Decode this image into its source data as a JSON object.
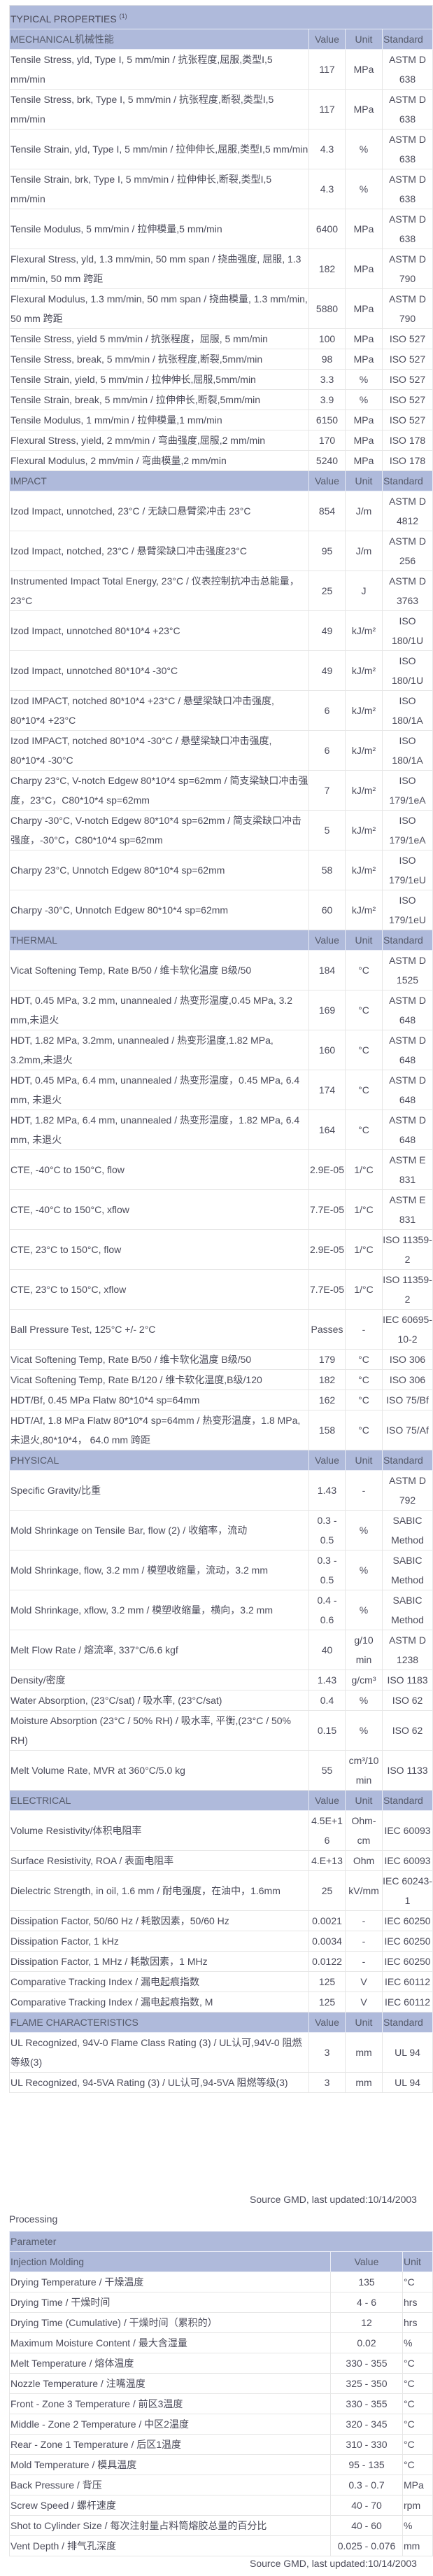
{
  "properties": {
    "title": "TYPICAL PROPERTIES",
    "title_note": "(1)",
    "sections": [
      {
        "name": "MECHANICAL机械性能",
        "value_label": "Value",
        "unit_label": "Unit",
        "standard_label": "Standard",
        "rows": [
          [
            "Tensile Stress, yld, Type I, 5 mm/min / 抗张程度,屈服,类型I,5 mm/min",
            "117",
            "MPa",
            "ASTM D 638"
          ],
          [
            "Tensile Stress, brk, Type I, 5 mm/min / 抗张程度,断裂,类型I,5 mm/min",
            "117",
            "MPa",
            "ASTM D 638"
          ],
          [
            "Tensile Strain, yld, Type I, 5 mm/min / 拉伸伸长,屈服,类型I,5 mm/min",
            "4.3",
            "%",
            "ASTM D 638"
          ],
          [
            "Tensile Strain, brk, Type I, 5 mm/min / 拉伸伸长,断裂,类型I,5 mm/min",
            "4.3",
            "%",
            "ASTM D 638"
          ],
          [
            "Tensile Modulus, 5 mm/min / 拉伸模量,5 mm/min",
            "6400",
            "MPa",
            "ASTM D 638"
          ],
          [
            "Flexural Stress, yld, 1.3 mm/min, 50 mm span / 挠曲强度, 屈服, 1.3 mm/min, 50 mm 跨距",
            "182",
            "MPa",
            "ASTM D 790"
          ],
          [
            "Flexural Modulus, 1.3 mm/min, 50 mm span / 挠曲模量, 1.3 mm/min, 50 mm 跨距",
            "5880",
            "MPa",
            "ASTM D 790"
          ],
          [
            "Tensile Stress, yield 5 mm/min / 抗张程度，屈服, 5 mm/min",
            "100",
            "MPa",
            "ISO 527"
          ],
          [
            "Tensile Stress, break, 5 mm/min / 抗张程度,断裂,5mm/min",
            "98",
            "MPa",
            "ISO 527"
          ],
          [
            "Tensile Strain, yield, 5 mm/min / 拉伸伸长,屈服,5mm/min",
            "3.3",
            "%",
            "ISO 527"
          ],
          [
            "Tensile Strain, break, 5 mm/min / 拉伸伸长,断裂,5mm/min",
            "3.9",
            "%",
            "ISO 527"
          ],
          [
            "Tensile Modulus, 1 mm/min / 拉伸模量,1 mm/min",
            "6150",
            "MPa",
            "ISO 527"
          ],
          [
            "Flexural Stress, yield, 2 mm/min / 弯曲强度,屈服,2 mm/min",
            "170",
            "MPa",
            "ISO 178"
          ],
          [
            "Flexural Modulus, 2 mm/min / 弯曲模量,2 mm/min",
            "5240",
            "MPa",
            "ISO 178"
          ]
        ]
      },
      {
        "name": "IMPACT",
        "value_label": "Value",
        "unit_label": "Unit",
        "standard_label": "Standard",
        "rows": [
          [
            "Izod Impact, unnotched, 23°C / 无缺口悬臂梁冲击 23°C",
            "854",
            "J/m",
            "ASTM D 4812"
          ],
          [
            "Izod Impact, notched, 23°C / 悬臂梁缺口冲击强度23°C",
            "95",
            "J/m",
            "ASTM D 256"
          ],
          [
            "Instrumented Impact Total Energy, 23°C / 仪表控制抗冲击总能量，23°C",
            "25",
            "J",
            "ASTM D 3763"
          ],
          [
            "Izod Impact, unnotched 80*10*4 +23°C",
            "49",
            "kJ/m²",
            "ISO 180/1U"
          ],
          [
            "Izod Impact, unnotched 80*10*4 -30°C",
            "49",
            "kJ/m²",
            "ISO 180/1U"
          ],
          [
            "Izod IMPACT, notched 80*10*4 +23°C / 悬壁梁缺口冲击强度, 80*10*4 +23°C",
            "6",
            "kJ/m²",
            "ISO 180/1A"
          ],
          [
            "Izod IMPACT, notched 80*10*4 -30°C / 悬壁梁缺口冲击强度, 80*10*4 -30°C",
            "6",
            "kJ/m²",
            "ISO 180/1A"
          ],
          [
            "Charpy 23°C, V-notch Edgew 80*10*4 sp=62mm / 简支梁缺口冲击强度，23°C，C80*10*4 sp=62mm",
            "7",
            "kJ/m²",
            "ISO 179/1eA"
          ],
          [
            "Charpy -30°C, V-notch Edgew 80*10*4 sp=62mm / 简支梁缺口冲击强度，-30°C，C80*10*4 sp=62mm",
            "5",
            "kJ/m²",
            "ISO 179/1eA"
          ],
          [
            "Charpy 23°C, Unnotch Edgew 80*10*4 sp=62mm",
            "58",
            "kJ/m²",
            "ISO 179/1eU"
          ],
          [
            "Charpy -30°C, Unnotch Edgew 80*10*4 sp=62mm",
            "60",
            "kJ/m²",
            "ISO 179/1eU"
          ]
        ]
      },
      {
        "name": "THERMAL",
        "value_label": "Value",
        "unit_label": "Unit",
        "standard_label": "Standard",
        "rows": [
          [
            "Vicat Softening Temp, Rate B/50 / 维卡软化温度 B级/50",
            "184",
            "°C",
            "ASTM D 1525"
          ],
          [
            "HDT, 0.45 MPa, 3.2 mm, unannealed / 热变形温度,0.45 MPa, 3.2 mm,未退火",
            "169",
            "°C",
            "ASTM D 648"
          ],
          [
            "HDT, 1.82 MPa, 3.2mm, unannealed / 热变形温度,1.82 MPa, 3.2mm,未退火",
            "160",
            "°C",
            "ASTM D 648"
          ],
          [
            "HDT, 0.45 MPa, 6.4 mm, unannealed / 热变形温度，0.45 MPa, 6.4 mm, 未退火",
            "174",
            "°C",
            "ASTM D 648"
          ],
          [
            "HDT, 1.82 MPa, 6.4 mm, unannealed / 热变形温度，1.82 MPa, 6.4 mm, 未退火",
            "164",
            "°C",
            "ASTM D 648"
          ],
          [
            "CTE, -40°C to 150°C, flow",
            "2.9E-05",
            "1/°C",
            "ASTM E 831"
          ],
          [
            "CTE, -40°C to 150°C, xflow",
            "7.7E-05",
            "1/°C",
            "ASTM E 831"
          ],
          [
            "CTE, 23°C to 150°C, flow",
            "2.9E-05",
            "1/°C",
            "ISO 11359-2"
          ],
          [
            "CTE, 23°C to 150°C, xflow",
            "7.7E-05",
            "1/°C",
            "ISO 11359-2"
          ],
          [
            "Ball Pressure Test, 125°C +/- 2°C",
            "Passes",
            "-",
            "IEC 60695-10-2"
          ],
          [
            "Vicat Softening Temp, Rate B/50 / 维卡软化温度 B级/50",
            "179",
            "°C",
            "ISO 306"
          ],
          [
            "Vicat Softening Temp, Rate B/120 / 维卡软化温度,B级/120",
            "182",
            "°C",
            "ISO 306"
          ],
          [
            "HDT/Bf, 0.45 MPa Flatw 80*10*4 sp=64mm",
            "162",
            "°C",
            "ISO 75/Bf"
          ],
          [
            "HDT/Af, 1.8 MPa Flatw 80*10*4 sp=64mm / 热变形温度，1.8 MPa, 未退火,80*10*4， 64.0 mm 跨距",
            "158",
            "°C",
            "ISO 75/Af"
          ]
        ]
      },
      {
        "name": "PHYSICAL",
        "value_label": "Value",
        "unit_label": "Unit",
        "standard_label": "Standard",
        "rows": [
          [
            "Specific Gravity/比重",
            "1.43",
            "-",
            "ASTM D 792"
          ],
          [
            "Mold Shrinkage on Tensile Bar, flow (2) / 收缩率，流动",
            "0.3 - 0.5",
            "%",
            "SABIC Method"
          ],
          [
            "Mold Shrinkage, flow, 3.2 mm / 模塑收缩量，流动，3.2 mm",
            "0.3 - 0.5",
            "%",
            "SABIC Method"
          ],
          [
            "Mold Shrinkage, xflow, 3.2 mm / 模塑收缩量，横向，3.2 mm",
            "0.4 - 0.6",
            "%",
            "SABIC Method"
          ],
          [
            "Melt Flow Rate / 熔流率, 337°C/6.6 kgf",
            "40",
            "g/10 min",
            "ASTM D 1238"
          ],
          [
            "Density/密度",
            "1.43",
            "g/cm³",
            "ISO 1183"
          ],
          [
            "Water Absorption, (23°C/sat) / 吸水率, (23°C/sat)",
            "0.4",
            "%",
            "ISO 62"
          ],
          [
            "Moisture Absorption (23°C / 50% RH) / 吸水率, 平衡,(23°C / 50% RH)",
            "0.15",
            "%",
            "ISO 62"
          ],
          [
            "Melt Volume Rate, MVR at 360°C/5.0 kg",
            "55",
            "cm³/10 min",
            "ISO 1133"
          ]
        ]
      },
      {
        "name": "ELECTRICAL",
        "value_label": "Value",
        "unit_label": "Unit",
        "standard_label": "Standard",
        "rows": [
          [
            "Volume Resistivity/体积电阻率",
            "4.5E+16",
            "Ohm-cm",
            "IEC 60093"
          ],
          [
            "Surface Resistivity, ROA / 表面电阻率",
            "4.E+13",
            "Ohm",
            "IEC 60093"
          ],
          [
            "Dielectric Strength, in oil, 1.6 mm / 耐电强度，在油中，1.6mm",
            "25",
            "kV/mm",
            "IEC 60243-1"
          ],
          [
            "Dissipation Factor, 50/60 Hz / 耗散因素，50/60 Hz",
            "0.0021",
            "-",
            "IEC 60250"
          ],
          [
            "Dissipation Factor, 1 kHz",
            "0.0034",
            "-",
            "IEC 60250"
          ],
          [
            "Dissipation Factor, 1 MHz / 耗散因素，1 MHz",
            "0.0122",
            "-",
            "IEC 60250"
          ],
          [
            "Comparative Tracking Index / 漏电起痕指数",
            "125",
            "V",
            "IEC 60112"
          ],
          [
            "Comparative Tracking Index / 漏电起痕指数, M",
            "125",
            "V",
            "IEC 60112"
          ]
        ]
      },
      {
        "name": "FLAME CHARACTERISTICS",
        "value_label": "Value",
        "unit_label": "Unit",
        "standard_label": "Standard",
        "rows": [
          [
            "UL Recognized, 94V-0 Flame Class Rating (3) / UL认可,94V-0 阻燃等级(3)",
            "3",
            "mm",
            "UL 94"
          ],
          [
            "UL Recognized, 94-5VA Rating (3) / UL认可,94-5VA 阻燃等级(3)",
            "3",
            "mm",
            "UL 94"
          ]
        ]
      }
    ],
    "source": "Source GMD, last updated:10/14/2003"
  },
  "processing": {
    "label": "Processing",
    "parameter_label": "Parameter",
    "section": "Injection Molding",
    "value_label": "Value",
    "unit_label": "Unit",
    "rows": [
      [
        "Drying Temperature / 干燥温度",
        "135",
        "°C"
      ],
      [
        "Drying Time / 干燥时间",
        "4 - 6",
        "hrs"
      ],
      [
        "Drying Time (Cumulative) / 干燥时间（累积的）",
        "12",
        "hrs"
      ],
      [
        "Maximum Moisture Content / 最大含湿量",
        "0.02",
        "%"
      ],
      [
        "Melt Temperature / 熔体温度",
        "330 - 355",
        "°C"
      ],
      [
        "Nozzle Temperature / 注嘴温度",
        "325 - 350",
        "°C"
      ],
      [
        "Front - Zone 3 Temperature / 前区3温度",
        "330 - 355",
        "°C"
      ],
      [
        "Middle - Zone 2 Temperature / 中区2温度",
        "320 - 345",
        "°C"
      ],
      [
        "Rear - Zone 1 Temperature / 后区1温度",
        "310 - 330",
        "°C"
      ],
      [
        "Mold Temperature / 模具温度",
        "95 - 135",
        "°C"
      ],
      [
        "Back Pressure / 背压",
        "0.3 - 0.7",
        "MPa"
      ],
      [
        "Screw Speed / 螺杆速度",
        "40 - 70",
        "rpm"
      ],
      [
        "Shot to Cylinder Size / 每次注射量占料筒熔胶总量的百分比",
        "40 - 60",
        "%"
      ],
      [
        "Vent Depth / 排气孔深度",
        "0.025 - 0.076",
        "mm"
      ]
    ],
    "source": "Source GMD, last updated:10/14/2003"
  },
  "colors": {
    "header_bg": "#afbadb",
    "border": "#e6e6e6",
    "outer_border": "#333333"
  }
}
